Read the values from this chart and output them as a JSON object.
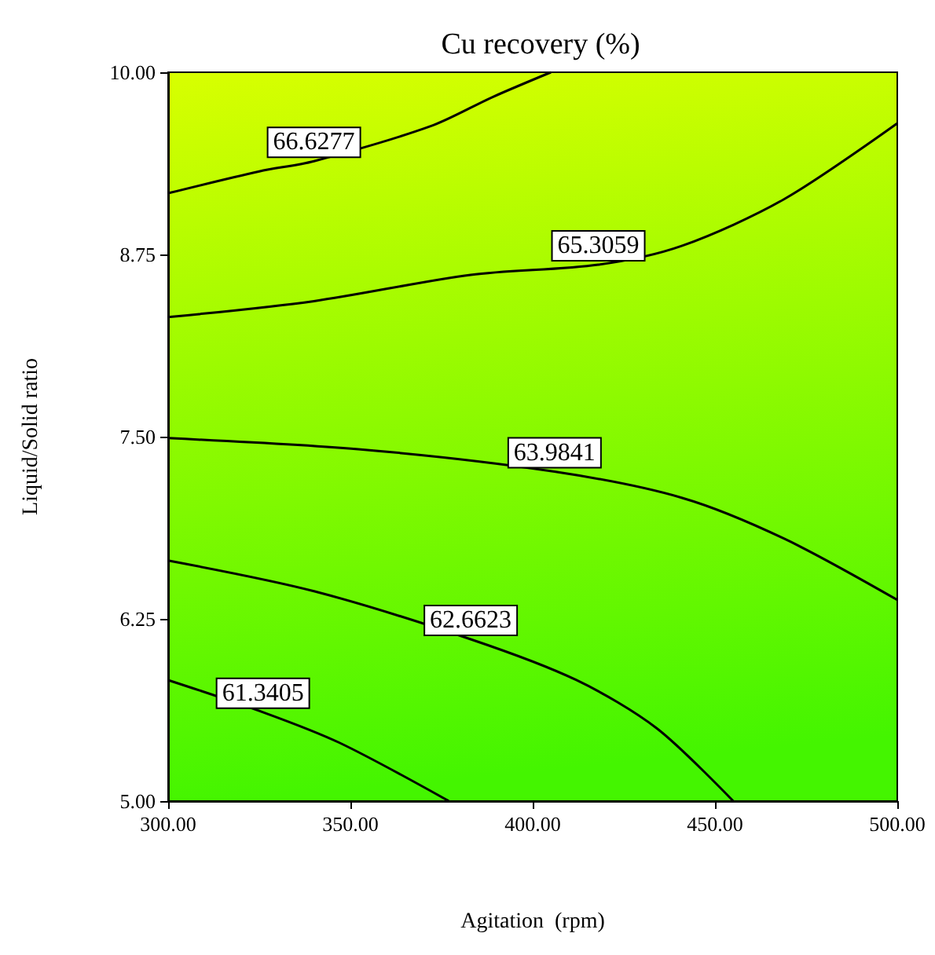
{
  "chart_data": {
    "type": "line",
    "title": "Cu recovery (%)",
    "xlabel": "Agitation  (rpm)",
    "ylabel": "Liquid/Solid ratio",
    "xlim": [
      300,
      500
    ],
    "ylim": [
      5,
      10
    ],
    "xticks": [
      {
        "value": 300,
        "label": "300.00"
      },
      {
        "value": 350,
        "label": "350.00"
      },
      {
        "value": 400,
        "label": "400.00"
      },
      {
        "value": 450,
        "label": "450.00"
      },
      {
        "value": 500,
        "label": "500.00"
      }
    ],
    "yticks": [
      {
        "value": 5,
        "label": "5.00"
      },
      {
        "value": 6.25,
        "label": "6.25"
      },
      {
        "value": 7.5,
        "label": "7.50"
      },
      {
        "value": 8.75,
        "label": "8.75"
      },
      {
        "value": 10,
        "label": "10.00"
      }
    ],
    "marker": "none",
    "line_style": "solid",
    "grid": false,
    "series": [
      {
        "name": "66.6277",
        "color": "#000000",
        "x": [
          300,
          325,
          340,
          372,
          389,
          405
        ],
        "values": [
          9.17,
          9.32,
          9.39,
          9.63,
          9.83,
          10
        ]
      },
      {
        "name": "65.3059",
        "color": "#000000",
        "x": [
          300,
          340,
          383,
          418,
          441,
          469,
          500
        ],
        "values": [
          8.32,
          8.43,
          8.61,
          8.68,
          8.81,
          9.13,
          9.65
        ]
      },
      {
        "name": "63.9841",
        "color": "#000000",
        "x": [
          300,
          354,
          406,
          441,
          469,
          500
        ],
        "values": [
          7.49,
          7.41,
          7.26,
          7.08,
          6.8,
          6.38
        ]
      },
      {
        "name": "62.6623",
        "color": "#000000",
        "x": [
          300,
          340,
          383,
          412,
          434,
          455
        ],
        "values": [
          6.65,
          6.44,
          6.11,
          5.83,
          5.5,
          5
        ]
      },
      {
        "name": "61.3405",
        "color": "#000000",
        "x": [
          300,
          326,
          347,
          377
        ],
        "values": [
          5.83,
          5.61,
          5.4,
          5
        ]
      }
    ]
  }
}
